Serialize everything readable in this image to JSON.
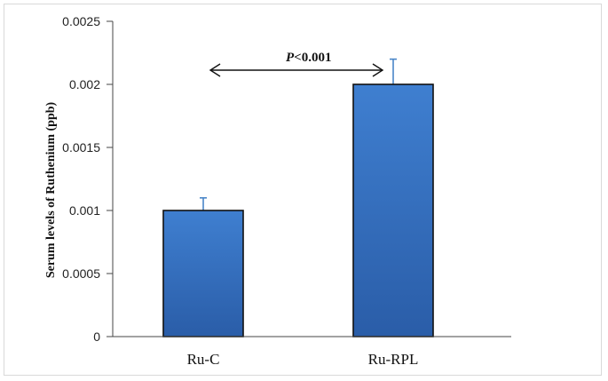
{
  "chart_data": {
    "type": "bar",
    "categories": [
      "Ru-C",
      "Ru-RPL"
    ],
    "values": [
      0.001,
      0.002
    ],
    "error_plus": [
      0.0001,
      0.0002
    ],
    "ylabel": "Serum levels of  Ruthenium (ppb)",
    "xlabel": "",
    "ylim": [
      0,
      0.0025
    ],
    "yticks": [
      "0",
      "0.0005",
      "0.001",
      "0.0015",
      "0.002",
      "0.0025"
    ],
    "ytick_values": [
      0,
      0.0005,
      0.001,
      0.0015,
      0.002,
      0.0025
    ],
    "grid": false,
    "annotation": {
      "prefix": "P",
      "text": "<0.001",
      "arrow": "double-headed between bars"
    },
    "colors": {
      "bar_top": "#3f7fd0",
      "bar_bottom": "#2a5da8",
      "bar_outline": "#111111",
      "error_bar": "#4a86c8",
      "axis": "#444444"
    }
  }
}
